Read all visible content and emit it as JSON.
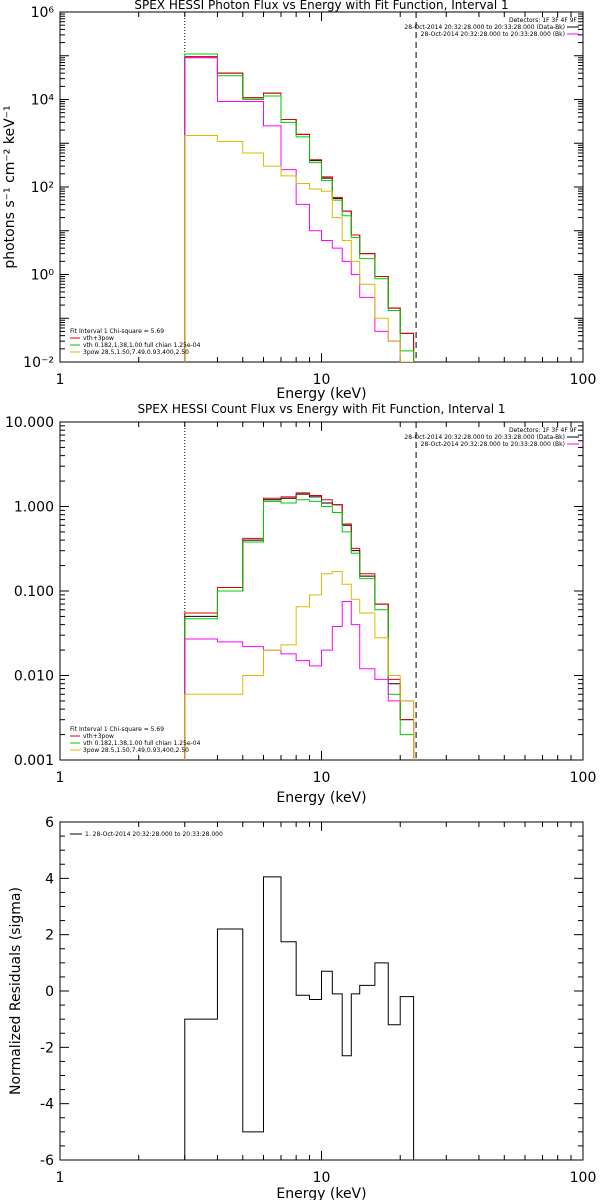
{
  "chart_data": [
    {
      "type": "line",
      "title": "SPEX HESSI Photon Flux vs Energy with Fit Function, Interval 1",
      "xlabel": "Energy (keV)",
      "ylabel": "photons s⁻¹ cm⁻² keV⁻¹",
      "xscale": "log",
      "yscale": "log",
      "xlim": [
        1,
        100
      ],
      "ylim": [
        0.01,
        1000000
      ],
      "x_ticks": [
        {
          "value": 1,
          "label": "1"
        },
        {
          "value": 10,
          "label": "10"
        },
        {
          "value": 100,
          "label": "100"
        }
      ],
      "y_ticks": [
        {
          "value": 0.01,
          "label": "10⁻²"
        },
        {
          "value": 1,
          "label": "10⁰"
        },
        {
          "value": 100,
          "label": "10²"
        },
        {
          "value": 10000,
          "label": "10⁴"
        },
        {
          "value": 1000000,
          "label": "10⁶"
        }
      ],
      "vlines": [
        {
          "x": 3,
          "style": "dotted"
        },
        {
          "x": 23,
          "style": "dashed"
        }
      ],
      "bin_edges": [
        3,
        4,
        5,
        6,
        7,
        8,
        9,
        10,
        11,
        12,
        13,
        14,
        16,
        18,
        20,
        22.5
      ],
      "series": [
        {
          "color": "#000000",
          "values": [
            95000,
            40000,
            11000,
            14000,
            3500,
            1600,
            400,
            160,
            55,
            28,
            8,
            3,
            0.9,
            0.17,
            0.045
          ]
        },
        {
          "color": "#dd0000",
          "values": [
            95000,
            40000,
            11000,
            14000,
            3500,
            1600,
            420,
            170,
            58,
            28,
            8,
            3,
            0.9,
            0.17,
            0.045
          ]
        },
        {
          "color": "#00cc00",
          "values": [
            110000,
            35000,
            10000,
            12000,
            3000,
            1400,
            360,
            140,
            50,
            22,
            7,
            2.3,
            0.8,
            0.15,
            0.018
          ]
        },
        {
          "color": "#ff00ff",
          "values": [
            90000,
            9000,
            9000,
            2500,
            250,
            40,
            10,
            6,
            4,
            2,
            1,
            0.3,
            0.05,
            0.03,
            0.01
          ]
        },
        {
          "color": "#ddbb00",
          "values": [
            1500,
            1100,
            600,
            300,
            180,
            120,
            90,
            80,
            20,
            6,
            2,
            0.6,
            0.1,
            0.03,
            0.01
          ]
        }
      ],
      "legend_top": {
        "header": "Detectors: 1F 3F 4F 9F",
        "entries": [
          {
            "color": "#000000",
            "text": "28-Oct-2014 20:32:28.000 to 20:33:28.000 (Data-Bk)"
          },
          {
            "color": "#ff00ff",
            "text": "28-Oct-2014 20:32:28.000 to 20:33:28.000 (Bk)"
          }
        ]
      },
      "legend_bottom": {
        "header": "Fit Interval 1   Chi-square = 5.69",
        "entries": [
          {
            "color": "#dd0000",
            "text": "vth+3pow"
          },
          {
            "color": "#00cc00",
            "text": "vth 0.182,1.38,1.00  full chian 1.25e-04"
          },
          {
            "color": "#ddbb00",
            "text": "3pow 28.5,1.50,7.49,0.93,400,2.50"
          }
        ]
      }
    },
    {
      "type": "line",
      "title": "SPEX HESSI Count Flux vs Energy with Fit Function, Interval 1",
      "xlabel": "Energy (keV)",
      "ylabel": "",
      "xscale": "log",
      "yscale": "log",
      "xlim": [
        1,
        100
      ],
      "ylim": [
        0.001,
        10
      ],
      "x_ticks": [
        {
          "value": 1,
          "label": "1"
        },
        {
          "value": 10,
          "label": "10"
        },
        {
          "value": 100,
          "label": "100"
        }
      ],
      "y_ticks": [
        {
          "value": 0.001,
          "label": "0.001"
        },
        {
          "value": 0.01,
          "label": "0.010"
        },
        {
          "value": 0.1,
          "label": "0.100"
        },
        {
          "value": 1,
          "label": "1.000"
        },
        {
          "value": 10,
          "label": "10.000"
        }
      ],
      "vlines": [
        {
          "x": 3,
          "style": "dotted"
        },
        {
          "x": 23,
          "style": "dashed"
        }
      ],
      "bin_edges": [
        3,
        4,
        5,
        6,
        7,
        8,
        9,
        10,
        11,
        12,
        13,
        14,
        16,
        18,
        20,
        22.5
      ],
      "series": [
        {
          "color": "#000000",
          "values": [
            0.05,
            0.1,
            0.4,
            1.2,
            1.25,
            1.4,
            1.3,
            1.1,
            1.05,
            0.6,
            0.3,
            0.15,
            0.07,
            0.008,
            0.003
          ]
        },
        {
          "color": "#dd0000",
          "values": [
            0.055,
            0.11,
            0.42,
            1.25,
            1.3,
            1.45,
            1.35,
            1.2,
            1.05,
            0.62,
            0.32,
            0.16,
            0.07,
            0.009,
            0.003
          ]
        },
        {
          "color": "#00cc00",
          "values": [
            0.047,
            0.1,
            0.38,
            1.15,
            1.1,
            1.2,
            1.15,
            1.0,
            0.85,
            0.5,
            0.28,
            0.14,
            0.06,
            0.006,
            0.002
          ]
        },
        {
          "color": "#ff00ff",
          "values": [
            0.027,
            0.025,
            0.022,
            0.02,
            0.018,
            0.015,
            0.013,
            0.02,
            0.038,
            0.075,
            0.04,
            0.012,
            0.009,
            0.005,
            0.005
          ]
        },
        {
          "color": "#ddbb00",
          "values": [
            0.006,
            0.006,
            0.01,
            0.02,
            0.023,
            0.065,
            0.09,
            0.16,
            0.17,
            0.12,
            0.08,
            0.055,
            0.028,
            0.01,
            0.005
          ]
        }
      ],
      "legend_top": {
        "header": "Detectors: 1F 3F 4F 9F",
        "entries": [
          {
            "color": "#000000",
            "text": "28-Oct-2014 20:32:28.000 to 20:33:28.000 (Data-Bk)"
          },
          {
            "color": "#ff00ff",
            "text": "28-Oct-2014 20:32:28.000 to 20:33:28.000 (Bk)"
          }
        ]
      },
      "legend_bottom": {
        "header": "Fit Interval 1   Chi-square = 5.69",
        "entries": [
          {
            "color": "#dd0000",
            "text": "vth+3pow"
          },
          {
            "color": "#00cc00",
            "text": "vth 0.182,1.38,1.00  full chian 1.25e-04"
          },
          {
            "color": "#ddbb00",
            "text": "3pow 28.5,1.50,7.49,0.93,400,2.50"
          }
        ]
      }
    },
    {
      "type": "line",
      "title": "",
      "xlabel": "Energy (keV)",
      "ylabel": "Normalized Residuals (sigma)",
      "xscale": "log",
      "yscale": "linear",
      "xlim": [
        1,
        100
      ],
      "ylim": [
        -6,
        6
      ],
      "x_ticks": [
        {
          "value": 1,
          "label": "1"
        },
        {
          "value": 10,
          "label": "10"
        },
        {
          "value": 100,
          "label": "100"
        }
      ],
      "y_ticks": [
        {
          "value": -6,
          "label": "-6"
        },
        {
          "value": -4,
          "label": "-4"
        },
        {
          "value": -2,
          "label": "-2"
        },
        {
          "value": 0,
          "label": "0"
        },
        {
          "value": 2,
          "label": "2"
        },
        {
          "value": 4,
          "label": "4"
        },
        {
          "value": 6,
          "label": "6"
        }
      ],
      "vlines": [],
      "bin_edges": [
        3,
        4,
        5,
        6,
        7,
        8,
        9,
        10,
        11,
        12,
        13,
        14,
        16,
        18,
        20,
        22.5
      ],
      "series": [
        {
          "color": "#000000",
          "values": [
            -1.0,
            2.2,
            -5.0,
            4.05,
            1.75,
            -0.15,
            -0.3,
            0.7,
            -0.1,
            -2.3,
            -0.1,
            0.2,
            1.0,
            -1.2,
            -0.2
          ]
        }
      ],
      "legend_top": {
        "header": "",
        "entries": [
          {
            "color": "#000000",
            "text": "1. 28-Oct-2014 20:32:28.000 to 20:33:28.000"
          }
        ]
      },
      "legend_bottom": {
        "header": "",
        "entries": []
      }
    }
  ]
}
